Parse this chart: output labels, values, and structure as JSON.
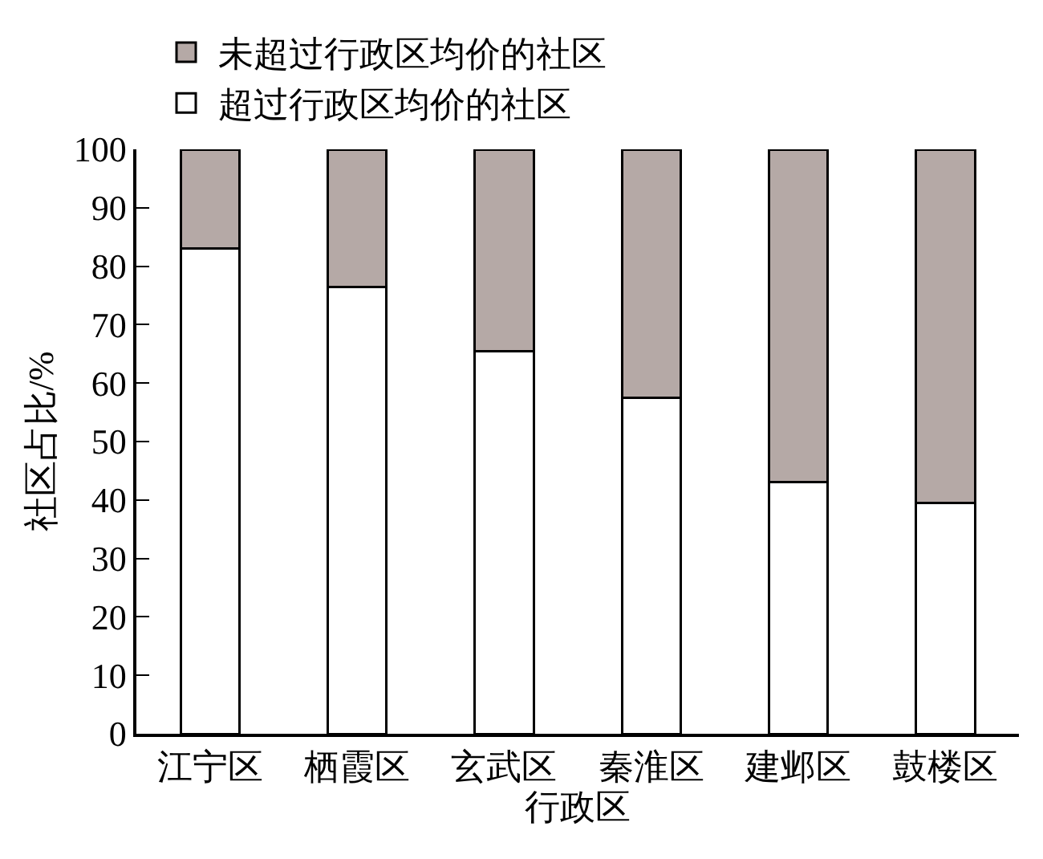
{
  "chart_data": {
    "type": "bar",
    "stacked": true,
    "xlabel": "行政区",
    "ylabel": "社区占比/%",
    "categories": [
      "江宁区",
      "栖霞区",
      "玄武区",
      "秦淮区",
      "建邺区",
      "鼓楼区"
    ],
    "series": [
      {
        "name": "超过行政区均价的社区",
        "color": "#ffffff",
        "values": [
          83,
          76.5,
          65.5,
          57.5,
          43,
          39.5
        ]
      },
      {
        "name": "未超过行政区均价的社区",
        "color": "#b5a9a6",
        "values": [
          17,
          23.5,
          34.5,
          42.5,
          57,
          60.5
        ]
      }
    ],
    "ylim": [
      0,
      100
    ],
    "yticks": [
      0,
      10,
      20,
      30,
      40,
      50,
      60,
      70,
      80,
      90,
      100
    ],
    "grid": false,
    "legend": "top"
  }
}
